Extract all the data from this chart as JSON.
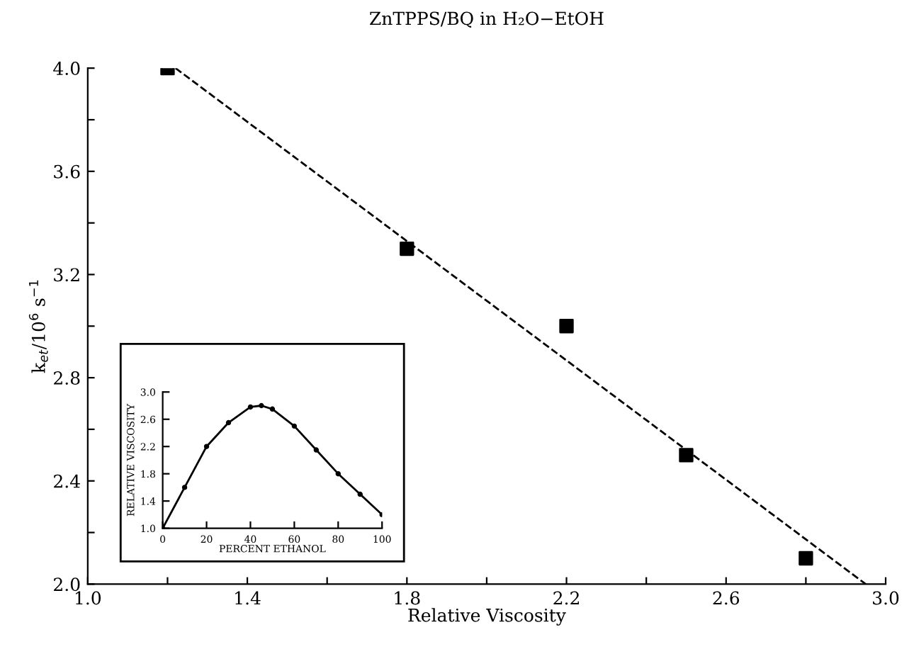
{
  "chart_data": [
    {
      "type": "scatter",
      "title": "ZnTPPS/BQ in H₂O−EtOH",
      "xlabel": "Relative Viscosity",
      "ylabel": "k$_{et}$/10$^{6}$ s$^{−1}$",
      "xlim": [
        1.0,
        3.0
      ],
      "ylim": [
        2.0,
        4.0
      ],
      "xticks": [
        {
          "value": 1.0,
          "label": "1.0"
        },
        {
          "value": 1.2,
          "label": null
        },
        1.4,
        {
          "value": 1.6,
          "label": null
        },
        1.8,
        {
          "value": 2.0,
          "label": null
        },
        2.2,
        {
          "value": 2.4,
          "label": null
        },
        2.6,
        {
          "value": 2.8,
          "label": null
        },
        {
          "value": 3.0,
          "label": "3.0"
        }
      ],
      "yticks": [
        {
          "value": 2.0,
          "label": "2.0"
        },
        {
          "value": 2.2,
          "label": null
        },
        2.4,
        {
          "value": 2.6,
          "label": null
        },
        2.8,
        {
          "value": 3.0,
          "label": null
        },
        3.2,
        {
          "value": 3.4,
          "label": null
        },
        3.6,
        {
          "value": 3.8,
          "label": null
        },
        {
          "value": 4.0,
          "label": "4.0"
        }
      ],
      "marker": "square",
      "grid": false,
      "series": [
        {
          "type": "scatter",
          "color": "#000000",
          "x": [
            1.2,
            1.8,
            2.2,
            2.5,
            2.8
          ],
          "values": [
            4.0,
            3.3,
            3.0,
            2.5,
            2.1
          ]
        },
        {
          "type": "line",
          "color": "#000000",
          "line_style": "dashed",
          "marker": "none",
          "x": [
            1.22,
            2.95
          ],
          "values": [
            4.0,
            2.0
          ]
        }
      ]
    },
    {
      "type": "line",
      "xlabel": "PERCENT ETHANOL",
      "ylabel": "RELATIVE VISCOSITY",
      "xlim": [
        0,
        100
      ],
      "ylim": [
        1.0,
        3.0
      ],
      "xticks": [
        0,
        20,
        40,
        60,
        80,
        100
      ],
      "yticks": [
        {
          "value": 1.0,
          "label": "1.0"
        },
        1.4,
        1.8,
        2.2,
        2.6,
        {
          "value": 3.0,
          "label": "3.0"
        }
      ],
      "marker": "circle",
      "grid": false,
      "series": [
        {
          "color": "#000000",
          "x": [
            0,
            10,
            20,
            30,
            40,
            45,
            50,
            60,
            70,
            80,
            90,
            100
          ],
          "values": [
            1.0,
            1.6,
            2.2,
            2.55,
            2.78,
            2.8,
            2.75,
            2.5,
            2.15,
            1.8,
            1.5,
            1.2
          ]
        }
      ]
    }
  ]
}
